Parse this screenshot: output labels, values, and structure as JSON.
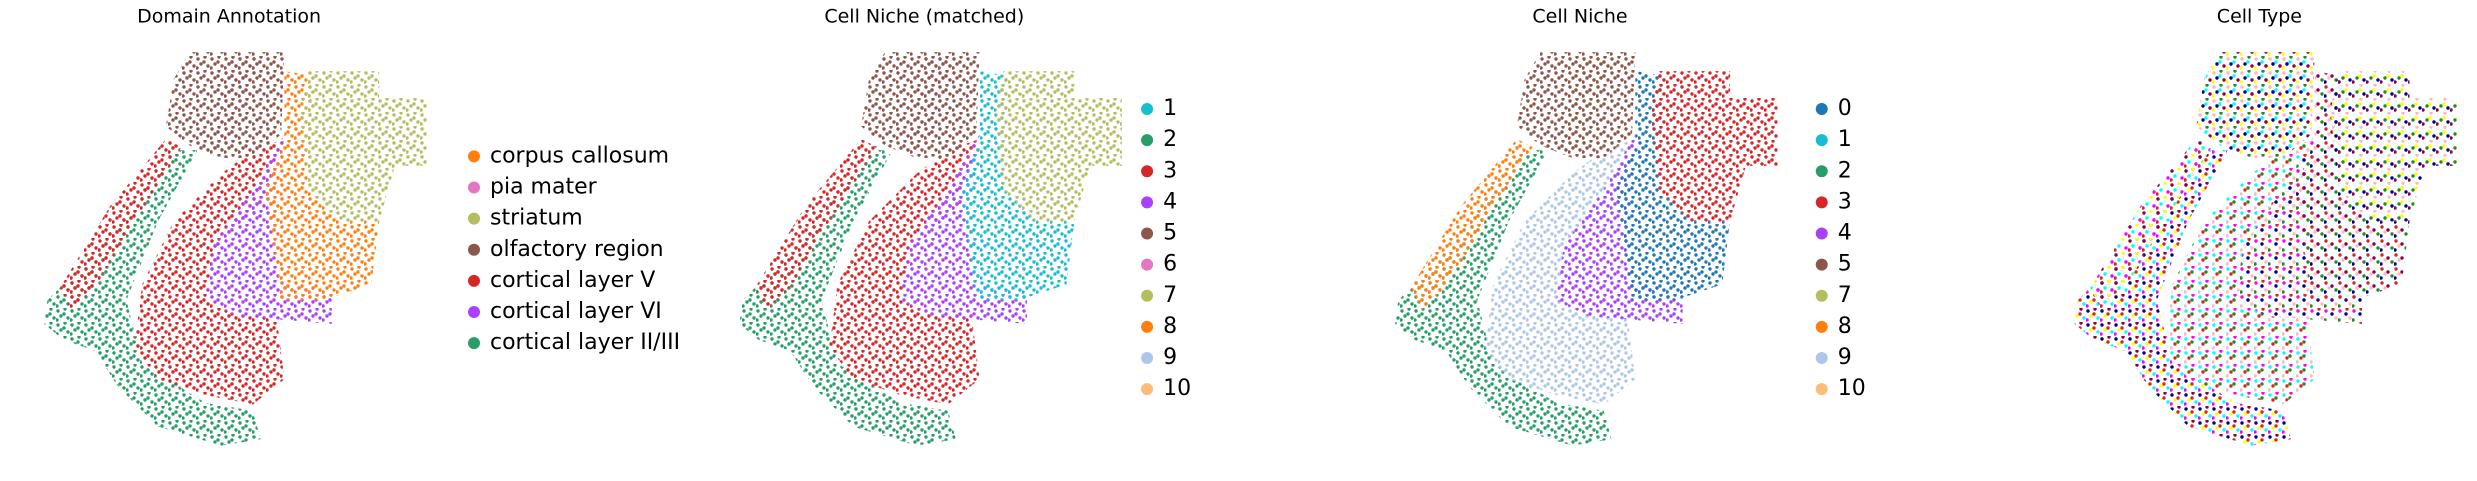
{
  "chart_data": [
    {
      "type": "scatter",
      "title": "Domain Annotation",
      "series": [
        {
          "name": "corpus callosum",
          "color": "#ff7f0e"
        },
        {
          "name": "pia mater",
          "color": "#e377c2"
        },
        {
          "name": "striatum",
          "color": "#b5bd61"
        },
        {
          "name": "olfactory region",
          "color": "#8c564b"
        },
        {
          "name": "cortical layer V",
          "color": "#d62728"
        },
        {
          "name": "cortical layer VI",
          "color": "#aa40fc"
        },
        {
          "name": "cortical layer II/III",
          "color": "#279e68"
        }
      ]
    },
    {
      "type": "scatter",
      "title": "Cell Niche (matched)",
      "series": [
        {
          "name": "1",
          "color": "#17becf"
        },
        {
          "name": "2",
          "color": "#279e68"
        },
        {
          "name": "3",
          "color": "#d62728"
        },
        {
          "name": "4",
          "color": "#aa40fc"
        },
        {
          "name": "5",
          "color": "#8c564b"
        },
        {
          "name": "6",
          "color": "#e377c2"
        },
        {
          "name": "7",
          "color": "#b5bd61"
        },
        {
          "name": "8",
          "color": "#ff7f0e"
        },
        {
          "name": "9",
          "color": "#aec7e8"
        },
        {
          "name": "10",
          "color": "#ffbb78"
        }
      ]
    },
    {
      "type": "scatter",
      "title": "Cell Niche",
      "series": [
        {
          "name": "0",
          "color": "#1f77b4"
        },
        {
          "name": "1",
          "color": "#17becf"
        },
        {
          "name": "2",
          "color": "#279e68"
        },
        {
          "name": "3",
          "color": "#d62728"
        },
        {
          "name": "4",
          "color": "#aa40fc"
        },
        {
          "name": "5",
          "color": "#8c564b"
        },
        {
          "name": "7",
          "color": "#b5bd61"
        },
        {
          "name": "8",
          "color": "#ff7f0e"
        },
        {
          "name": "9",
          "color": "#aec7e8"
        },
        {
          "name": "10",
          "color": "#ffbb78"
        }
      ]
    },
    {
      "type": "scatter",
      "title": "Cell Type",
      "colors": [
        "#000080",
        "#8b0046",
        "#ffff00",
        "#00ffff",
        "#ff00ff",
        "#d62728",
        "#e0ffff",
        "#ffb6c1",
        "#228b22"
      ]
    }
  ]
}
